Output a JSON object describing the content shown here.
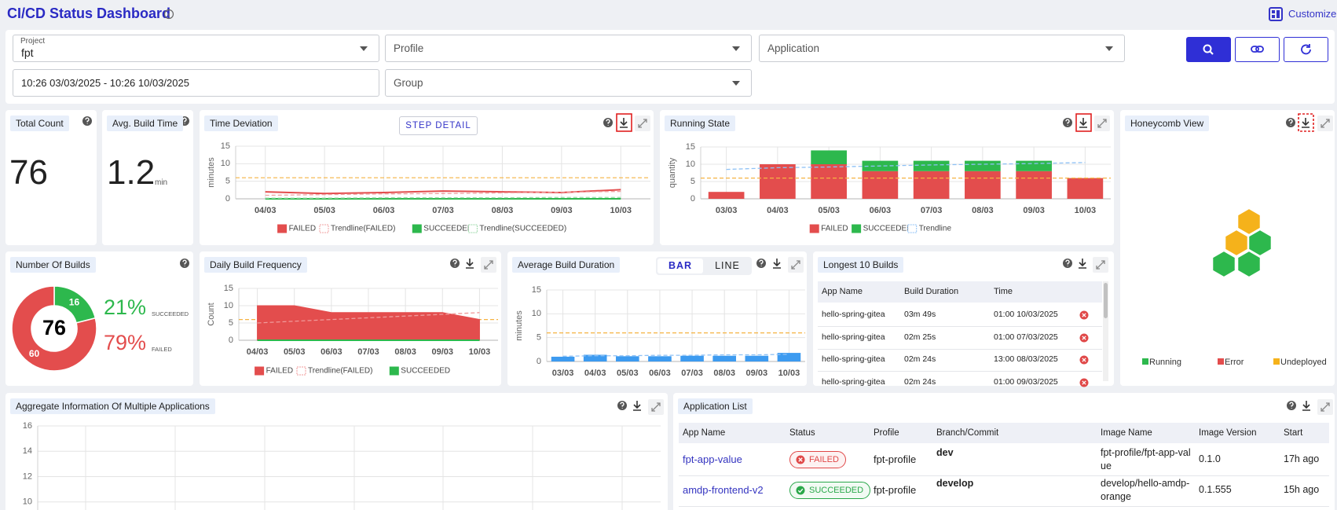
{
  "header": {
    "title": "CI/CD Status Dashboard",
    "customize": "Customize"
  },
  "filters": {
    "project": {
      "label": "Project",
      "value": "fpt"
    },
    "profile": "Profile",
    "application": "Application",
    "date_range": "10:26 03/03/2025 - 10:26 10/03/2025",
    "group": "Group"
  },
  "total_count": {
    "title": "Total Count",
    "value": 76
  },
  "avg_build_time": {
    "title": "Avg. Build Time",
    "value": 1.2,
    "unit": "min"
  },
  "time_deviation": {
    "title": "Time Deviation",
    "button": "STEP DETAIL",
    "type": "line",
    "y_label": "minutes",
    "categories": [
      "04/03",
      "05/03",
      "06/03",
      "07/03",
      "08/03",
      "09/03",
      "10/03"
    ],
    "series": [
      {
        "name": "FAILED",
        "color": "#e34d4d",
        "values": [
          2,
          1.5,
          1.8,
          2.2,
          2,
          1.8,
          2.6
        ]
      },
      {
        "name": "Trendline(FAILED)",
        "color": "#f0a0a0",
        "dashed": true,
        "values": [
          1,
          1.2,
          1.4,
          1.5,
          1.7,
          1.9,
          2.1
        ]
      },
      {
        "name": "SUCCEEDED",
        "color": "#2db84d",
        "values": [
          0,
          0,
          0,
          0,
          0,
          0,
          0
        ]
      },
      {
        "name": "Trendline(SUCCEEDED)",
        "color": "#9bd9a8",
        "dashed": true,
        "values": [
          0.2,
          0.2,
          0.3,
          0.3,
          0.3,
          0.4,
          0.4
        ]
      }
    ],
    "reference_lines": [
      {
        "value": 6,
        "color": "#f5b342"
      }
    ],
    "ylim": [
      0,
      15
    ],
    "yticks": [
      0,
      5,
      10,
      15
    ],
    "grid": true
  },
  "running_state": {
    "title": "Running State",
    "type": "bar",
    "stacked": true,
    "y_label": "quantity",
    "categories": [
      "03/03",
      "04/03",
      "05/03",
      "06/03",
      "07/03",
      "08/03",
      "09/03",
      "10/03"
    ],
    "series": [
      {
        "name": "FAILED",
        "color": "#e34d4d",
        "values": [
          2,
          10,
          10,
          8,
          8,
          8,
          8,
          6
        ]
      },
      {
        "name": "SUCCEEDED",
        "color": "#2db84d",
        "values": [
          0,
          0,
          4,
          3,
          3,
          3,
          3,
          0
        ]
      },
      {
        "name": "Trendline",
        "color": "#8ec1f5",
        "type": "line",
        "dashed": true,
        "values": [
          8.5,
          9,
          9.2,
          9.5,
          9.8,
          10,
          10.2,
          10.5
        ]
      }
    ],
    "reference_lines": [
      {
        "value": 6,
        "color": "#f5b342"
      }
    ],
    "ylim": [
      0,
      15
    ],
    "yticks": [
      0,
      5,
      10,
      15
    ],
    "grid": true
  },
  "honeycomb": {
    "title": "Honeycomb View",
    "legend": [
      {
        "name": "Running",
        "color": "#2db84d"
      },
      {
        "name": "Error",
        "color": "#e34d4d"
      },
      {
        "name": "Undeployed",
        "color": "#f5b21b"
      }
    ]
  },
  "number_of_builds": {
    "title": "Number Of Builds",
    "type": "pie",
    "total": 76,
    "series": [
      {
        "name": "SUCCEEDED",
        "value": 16,
        "color": "#2db84d"
      },
      {
        "name": "FAILED",
        "value": 60,
        "color": "#e34d4d"
      }
    ],
    "shares": {
      "values": [
        21,
        79
      ],
      "value_labels": [
        "21%",
        "79%"
      ]
    }
  },
  "daily_build_frequency": {
    "title": "Daily Build Frequency",
    "type": "area",
    "y_label": "Count",
    "categories": [
      "04/03",
      "05/03",
      "06/03",
      "07/03",
      "08/03",
      "09/03",
      "10/03"
    ],
    "series": [
      {
        "name": "FAILED",
        "color": "#e34d4d",
        "values": [
          10,
          10,
          8,
          8,
          8,
          8,
          6
        ]
      },
      {
        "name": "Trendline(FAILED)",
        "color": "#f09a9a",
        "type": "line",
        "dashed": true,
        "values": [
          5,
          5.5,
          6,
          6.5,
          7,
          7.5,
          8
        ]
      },
      {
        "name": "SUCCEEDED",
        "color": "#2db84d",
        "type": "line",
        "values": [
          0,
          0,
          0,
          0,
          0,
          0,
          0
        ]
      }
    ],
    "reference_lines": [
      {
        "value": 6,
        "color": "#f5b342"
      }
    ],
    "ylim": [
      0,
      15
    ],
    "yticks": [
      0,
      5,
      10,
      15
    ],
    "grid": true
  },
  "average_build_duration": {
    "title": "Average Build Duration",
    "type": "bar",
    "toggle": [
      "BAR",
      "LINE"
    ],
    "y_label": "minutes",
    "categories": [
      "03/03",
      "04/03",
      "05/03",
      "06/03",
      "07/03",
      "08/03",
      "09/03",
      "10/03"
    ],
    "series": [
      {
        "color": "#3d9bf0",
        "values": [
          1,
          1.4,
          1.1,
          1.1,
          1.2,
          1.2,
          1.2,
          1.8
        ]
      },
      {
        "color": "#8ec1f5",
        "type": "line",
        "dashed": true,
        "values": [
          1.1,
          1.2,
          1.2,
          1.3,
          1.3,
          1.4,
          1.4,
          1.5
        ]
      }
    ],
    "reference_lines": [
      {
        "value": 6,
        "color": "#f5b342"
      }
    ],
    "ylim": [
      0,
      15
    ],
    "yticks": [
      0,
      5,
      10,
      15
    ],
    "grid": true
  },
  "longest_builds": {
    "title": "Longest 10 Builds",
    "columns": [
      "App Name",
      "Build Duration",
      "Time"
    ],
    "rows": [
      [
        "hello-spring-gitea",
        "03m 49s",
        "01:00 10/03/2025"
      ],
      [
        "hello-spring-gitea",
        "02m 25s",
        "01:00 07/03/2025"
      ],
      [
        "hello-spring-gitea",
        "02m 24s",
        "13:00 08/03/2025"
      ],
      [
        "hello-spring-gitea",
        "02m 24s",
        "01:00 09/03/2025"
      ]
    ]
  },
  "aggregate": {
    "title": "Aggregate Information Of Multiple Applications",
    "type": "line",
    "categories": [],
    "series": [],
    "ylim": [
      0,
      16
    ],
    "yticks": [
      10,
      12,
      14,
      16
    ],
    "grid": true
  },
  "application_list": {
    "title": "Application List",
    "columns": [
      "App Name",
      "Status",
      "Profile",
      "Branch/Commit",
      "Image Name",
      "Image Version",
      "Start"
    ],
    "rows": [
      [
        "fpt-app-value",
        "FAILED",
        "fpt-profile",
        "dev",
        "fpt-profile/fpt-app-value",
        "0.1.0",
        "17h ago"
      ],
      [
        "amdp-frontend-v2",
        "SUCCEEDED",
        "fpt-profile",
        "develop",
        "develop/hello-amdp-orange",
        "0.1.555",
        "15h ago"
      ]
    ]
  }
}
